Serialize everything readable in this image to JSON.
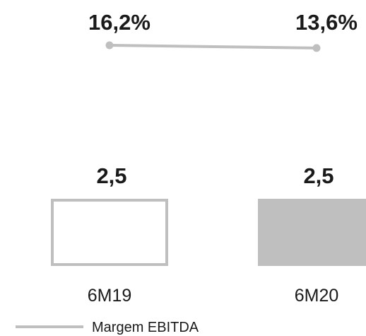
{
  "chart_data": {
    "type": "bar",
    "categories": [
      "6M19",
      "6M20"
    ],
    "series": [
      {
        "kind": "bar",
        "values": [
          2.5,
          2.5
        ],
        "value_labels": [
          "2,5",
          "2,5"
        ],
        "styles": [
          "outline",
          "filled"
        ]
      },
      {
        "name": "Margem EBITDA",
        "kind": "line",
        "values": [
          16.2,
          13.6
        ],
        "value_labels": [
          "16,2%",
          "13,6%"
        ]
      }
    ],
    "legend": [
      "Margem EBITDA"
    ],
    "legend_position": "bottom-left",
    "grid": false,
    "colors": {
      "bar_fill": "#bfbfbf",
      "bar_outline": "#bfbfbf",
      "line": "#bfbfbf",
      "text": "#1a1a1a"
    }
  }
}
